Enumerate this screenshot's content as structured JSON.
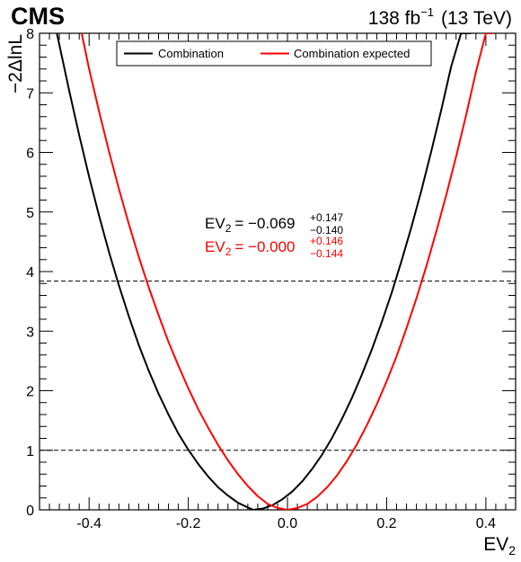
{
  "header": {
    "experiment": "CMS",
    "lumi": "138",
    "lumi_unit_base": "fb",
    "lumi_unit_exp": "−1",
    "energy": "(13 TeV)"
  },
  "legend": {
    "observed": "Combination",
    "expected": "Combination expected"
  },
  "annotations": {
    "observed": {
      "prefix": "EV",
      "sub": "2",
      "eq": "= −0.069",
      "up": "+0.147",
      "down": "−0.140"
    },
    "expected": {
      "prefix": "EV",
      "sub": "2",
      "eq": "= −0.000",
      "up": "+0.146",
      "down": "−0.144"
    }
  },
  "chart_data": {
    "type": "line",
    "xlabel": "EV",
    "xlabel_sub": "2",
    "ylabel": "−2ΔlnL",
    "xlim": [
      -0.5,
      0.46
    ],
    "ylim": [
      0,
      8
    ],
    "xticks": [
      -0.4,
      -0.2,
      0.0,
      0.2,
      0.4
    ],
    "xtick_labels": [
      "-0.4",
      "-0.2",
      "0.0",
      "0.2",
      "0.4"
    ],
    "yticks": [
      0,
      1,
      2,
      3,
      4,
      5,
      6,
      7,
      8
    ],
    "ytick_labels": [
      "0",
      "1",
      "2",
      "3",
      "4",
      "5",
      "6",
      "7",
      "8"
    ],
    "hlines": [
      1.0,
      3.84
    ],
    "grid": false,
    "legend_position": "top-center",
    "series": [
      {
        "name": "Combination",
        "color": "#000000",
        "x": [
          -0.465,
          -0.44,
          -0.42,
          -0.4,
          -0.38,
          -0.36,
          -0.34,
          -0.32,
          -0.3,
          -0.28,
          -0.26,
          -0.24,
          -0.22,
          -0.2,
          -0.18,
          -0.16,
          -0.14,
          -0.12,
          -0.1,
          -0.08,
          -0.069,
          -0.05,
          -0.03,
          -0.01,
          0.01,
          0.03,
          0.05,
          0.07,
          0.09,
          0.11,
          0.13,
          0.15,
          0.17,
          0.19,
          0.21,
          0.23,
          0.25,
          0.27,
          0.29,
          0.31,
          0.33,
          0.35,
          0.37
        ],
        "y": [
          8.0,
          7.03,
          6.29,
          5.59,
          4.94,
          4.33,
          3.77,
          3.25,
          2.77,
          2.34,
          1.95,
          1.6,
          1.28,
          1.01,
          0.77,
          0.56,
          0.38,
          0.24,
          0.12,
          0.04,
          0.0,
          0.02,
          0.08,
          0.18,
          0.31,
          0.48,
          0.69,
          0.93,
          1.21,
          1.53,
          1.88,
          2.27,
          2.69,
          3.15,
          3.64,
          4.18,
          4.75,
          5.36,
          6.02,
          6.71,
          7.44,
          8.0,
          8.0
        ]
      },
      {
        "name": "Combination expected",
        "color": "#ff0000",
        "x": [
          -0.415,
          -0.4,
          -0.38,
          -0.36,
          -0.34,
          -0.32,
          -0.3,
          -0.28,
          -0.26,
          -0.24,
          -0.22,
          -0.2,
          -0.18,
          -0.16,
          -0.14,
          -0.12,
          -0.1,
          -0.08,
          -0.06,
          -0.04,
          -0.02,
          0.0,
          0.02,
          0.04,
          0.06,
          0.08,
          0.1,
          0.12,
          0.14,
          0.16,
          0.18,
          0.2,
          0.22,
          0.24,
          0.26,
          0.28,
          0.3,
          0.32,
          0.34,
          0.36,
          0.38,
          0.4,
          0.415
        ],
        "y": [
          8.0,
          7.4,
          6.69,
          6.02,
          5.39,
          4.8,
          4.25,
          3.74,
          3.27,
          2.82,
          2.42,
          2.04,
          1.69,
          1.38,
          1.09,
          0.83,
          0.6,
          0.4,
          0.23,
          0.1,
          0.03,
          0.0,
          0.03,
          0.1,
          0.22,
          0.38,
          0.58,
          0.82,
          1.1,
          1.42,
          1.77,
          2.16,
          2.58,
          3.05,
          3.55,
          4.09,
          4.67,
          5.28,
          5.93,
          6.62,
          7.35,
          8.0,
          8.0
        ]
      }
    ]
  }
}
